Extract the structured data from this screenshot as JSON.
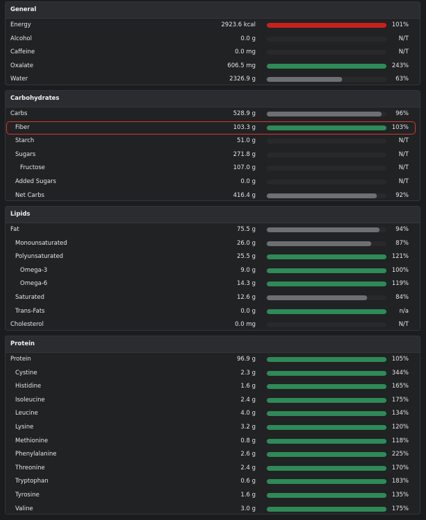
{
  "colors": {
    "red": "#c8201f",
    "green": "#2e8a57",
    "gray": "#6d6f73"
  },
  "sections": [
    {
      "title": "General",
      "rows": [
        {
          "name": "Energy",
          "amount": "2923.6 kcal",
          "pct": "101%",
          "fill": 1.0,
          "color": "red",
          "indent": 0
        },
        {
          "name": "Alcohol",
          "amount": "0.0 g",
          "pct": "N/T",
          "fill": 0,
          "color": "gray",
          "indent": 0
        },
        {
          "name": "Caffeine",
          "amount": "0.0 mg",
          "pct": "N/T",
          "fill": 0,
          "color": "gray",
          "indent": 0
        },
        {
          "name": "Oxalate",
          "amount": "606.5 mg",
          "pct": "243%",
          "fill": 1.0,
          "color": "green",
          "indent": 0
        },
        {
          "name": "Water",
          "amount": "2326.9 g",
          "pct": "63%",
          "fill": 0.63,
          "color": "gray",
          "indent": 0
        }
      ]
    },
    {
      "title": "Carbohydrates",
      "rows": [
        {
          "name": "Carbs",
          "amount": "528.9 g",
          "pct": "96%",
          "fill": 0.96,
          "color": "gray",
          "indent": 0
        },
        {
          "name": "Fiber",
          "amount": "103.3 g",
          "pct": "103%",
          "fill": 1.0,
          "color": "green",
          "indent": 1,
          "highlight": true
        },
        {
          "name": "Starch",
          "amount": "51.0 g",
          "pct": "N/T",
          "fill": 0,
          "color": "gray",
          "indent": 1
        },
        {
          "name": "Sugars",
          "amount": "271.8 g",
          "pct": "N/T",
          "fill": 0,
          "color": "gray",
          "indent": 1
        },
        {
          "name": "Fructose",
          "amount": "107.0 g",
          "pct": "N/T",
          "fill": 0,
          "color": "gray",
          "indent": 2
        },
        {
          "name": "Added Sugars",
          "amount": "0.0 g",
          "pct": "N/T",
          "fill": 0,
          "color": "gray",
          "indent": 1
        },
        {
          "name": "Net Carbs",
          "amount": "416.4 g",
          "pct": "92%",
          "fill": 0.92,
          "color": "gray",
          "indent": 1
        }
      ]
    },
    {
      "title": "Lipids",
      "rows": [
        {
          "name": "Fat",
          "amount": "75.5 g",
          "pct": "94%",
          "fill": 0.94,
          "color": "gray",
          "indent": 0
        },
        {
          "name": "Monounsaturated",
          "amount": "26.0 g",
          "pct": "87%",
          "fill": 0.87,
          "color": "gray",
          "indent": 1
        },
        {
          "name": "Polyunsaturated",
          "amount": "25.5 g",
          "pct": "121%",
          "fill": 1.0,
          "color": "green",
          "indent": 1
        },
        {
          "name": "Omega-3",
          "amount": "9.0 g",
          "pct": "100%",
          "fill": 1.0,
          "color": "green",
          "indent": 2
        },
        {
          "name": "Omega-6",
          "amount": "14.3 g",
          "pct": "119%",
          "fill": 1.0,
          "color": "green",
          "indent": 2
        },
        {
          "name": "Saturated",
          "amount": "12.6 g",
          "pct": "84%",
          "fill": 0.84,
          "color": "gray",
          "indent": 1
        },
        {
          "name": "Trans-Fats",
          "amount": "0.0 g",
          "pct": "n/a",
          "fill": 1.0,
          "color": "green",
          "indent": 1
        },
        {
          "name": "Cholesterol",
          "amount": "0.0 mg",
          "pct": "N/T",
          "fill": 0,
          "color": "gray",
          "indent": 0
        }
      ]
    },
    {
      "title": "Protein",
      "rows": [
        {
          "name": "Protein",
          "amount": "96.9 g",
          "pct": "105%",
          "fill": 1.0,
          "color": "green",
          "indent": 0
        },
        {
          "name": "Cystine",
          "amount": "2.3 g",
          "pct": "344%",
          "fill": 1.0,
          "color": "green",
          "indent": 1
        },
        {
          "name": "Histidine",
          "amount": "1.6 g",
          "pct": "165%",
          "fill": 1.0,
          "color": "green",
          "indent": 1
        },
        {
          "name": "Isoleucine",
          "amount": "2.4 g",
          "pct": "175%",
          "fill": 1.0,
          "color": "green",
          "indent": 1
        },
        {
          "name": "Leucine",
          "amount": "4.0 g",
          "pct": "134%",
          "fill": 1.0,
          "color": "green",
          "indent": 1
        },
        {
          "name": "Lysine",
          "amount": "3.2 g",
          "pct": "120%",
          "fill": 1.0,
          "color": "green",
          "indent": 1
        },
        {
          "name": "Methionine",
          "amount": "0.8 g",
          "pct": "118%",
          "fill": 1.0,
          "color": "green",
          "indent": 1
        },
        {
          "name": "Phenylalanine",
          "amount": "2.6 g",
          "pct": "225%",
          "fill": 1.0,
          "color": "green",
          "indent": 1
        },
        {
          "name": "Threonine",
          "amount": "2.4 g",
          "pct": "170%",
          "fill": 1.0,
          "color": "green",
          "indent": 1
        },
        {
          "name": "Tryptophan",
          "amount": "0.6 g",
          "pct": "183%",
          "fill": 1.0,
          "color": "green",
          "indent": 1
        },
        {
          "name": "Tyrosine",
          "amount": "1.6 g",
          "pct": "135%",
          "fill": 1.0,
          "color": "green",
          "indent": 1
        },
        {
          "name": "Valine",
          "amount": "3.0 g",
          "pct": "175%",
          "fill": 1.0,
          "color": "green",
          "indent": 1
        }
      ]
    }
  ]
}
